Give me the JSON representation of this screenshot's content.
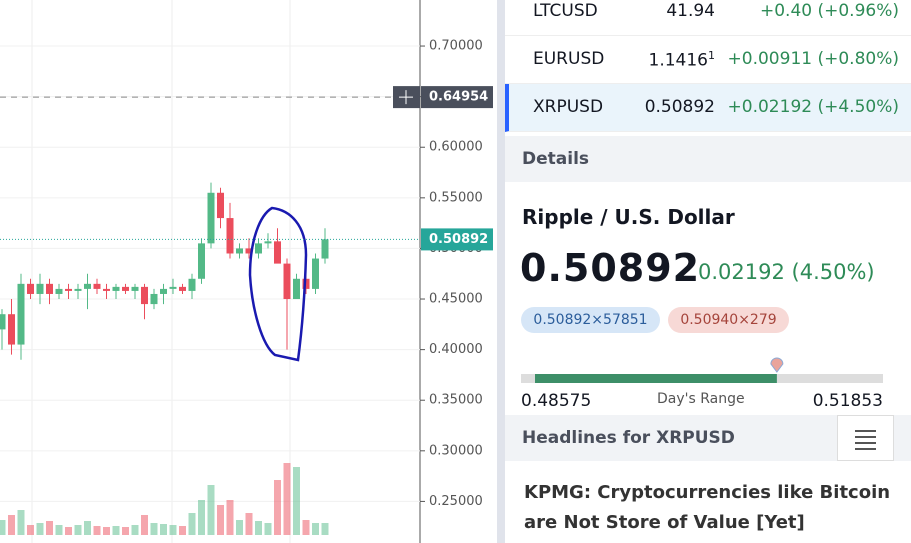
{
  "chart": {
    "ylim": [
      0.2089,
      0.7455
    ],
    "yticks": [
      {
        "value": 0.7,
        "label": "0.70000"
      },
      {
        "value": 0.65,
        "label": "0.65000"
      },
      {
        "value": 0.6,
        "label": "0.60000"
      },
      {
        "value": 0.55,
        "label": "0.55000"
      },
      {
        "value": 0.5,
        "label": "0.50000"
      },
      {
        "value": 0.45,
        "label": "0.45000"
      },
      {
        "value": 0.4,
        "label": "0.40000"
      },
      {
        "value": 0.35,
        "label": "0.35000"
      },
      {
        "value": 0.3,
        "label": "0.30000"
      },
      {
        "value": 0.25,
        "label": "0.25000"
      }
    ],
    "last_price": 0.50892,
    "crosshair": 0.64954,
    "up_color": "#53b987",
    "down_color": "#eb4d5c",
    "candles": [
      {
        "open": 0.42,
        "high": 0.44,
        "low": 0.4,
        "close": 0.435,
        "volume": 15
      },
      {
        "open": 0.435,
        "high": 0.45,
        "low": 0.395,
        "close": 0.405,
        "volume": 20
      },
      {
        "open": 0.405,
        "high": 0.475,
        "low": 0.39,
        "close": 0.465,
        "volume": 25
      },
      {
        "open": 0.465,
        "high": 0.47,
        "low": 0.45,
        "close": 0.455,
        "volume": 10
      },
      {
        "open": 0.455,
        "high": 0.475,
        "low": 0.445,
        "close": 0.465,
        "volume": 12
      },
      {
        "open": 0.465,
        "high": 0.47,
        "low": 0.445,
        "close": 0.455,
        "volume": 14
      },
      {
        "open": 0.455,
        "high": 0.465,
        "low": 0.45,
        "close": 0.46,
        "volume": 10
      },
      {
        "open": 0.46,
        "high": 0.465,
        "low": 0.45,
        "close": 0.458,
        "volume": 8
      },
      {
        "open": 0.458,
        "high": 0.465,
        "low": 0.45,
        "close": 0.46,
        "volume": 10
      },
      {
        "open": 0.46,
        "high": 0.475,
        "low": 0.44,
        "close": 0.465,
        "volume": 14
      },
      {
        "open": 0.465,
        "high": 0.47,
        "low": 0.455,
        "close": 0.46,
        "volume": 9
      },
      {
        "open": 0.46,
        "high": 0.465,
        "low": 0.45,
        "close": 0.458,
        "volume": 8
      },
      {
        "open": 0.458,
        "high": 0.465,
        "low": 0.45,
        "close": 0.462,
        "volume": 9
      },
      {
        "open": 0.462,
        "high": 0.465,
        "low": 0.455,
        "close": 0.458,
        "volume": 8
      },
      {
        "open": 0.458,
        "high": 0.465,
        "low": 0.45,
        "close": 0.462,
        "volume": 10
      },
      {
        "open": 0.462,
        "high": 0.465,
        "low": 0.43,
        "close": 0.445,
        "volume": 20
      },
      {
        "open": 0.445,
        "high": 0.46,
        "low": 0.44,
        "close": 0.455,
        "volume": 12
      },
      {
        "open": 0.455,
        "high": 0.465,
        "low": 0.445,
        "close": 0.46,
        "volume": 11
      },
      {
        "open": 0.46,
        "high": 0.47,
        "low": 0.455,
        "close": 0.462,
        "volume": 10
      },
      {
        "open": 0.462,
        "high": 0.465,
        "low": 0.455,
        "close": 0.458,
        "volume": 9
      },
      {
        "open": 0.458,
        "high": 0.475,
        "low": 0.45,
        "close": 0.47,
        "volume": 22
      },
      {
        "open": 0.47,
        "high": 0.51,
        "low": 0.465,
        "close": 0.505,
        "volume": 35
      },
      {
        "open": 0.505,
        "high": 0.565,
        "low": 0.5,
        "close": 0.555,
        "volume": 50
      },
      {
        "open": 0.555,
        "high": 0.56,
        "low": 0.52,
        "close": 0.53,
        "volume": 30
      },
      {
        "open": 0.53,
        "high": 0.545,
        "low": 0.49,
        "close": 0.495,
        "volume": 35
      },
      {
        "open": 0.495,
        "high": 0.505,
        "low": 0.49,
        "close": 0.5,
        "volume": 15
      },
      {
        "open": 0.5,
        "high": 0.51,
        "low": 0.49,
        "close": 0.495,
        "volume": 22
      },
      {
        "open": 0.495,
        "high": 0.51,
        "low": 0.49,
        "close": 0.505,
        "volume": 14
      },
      {
        "open": 0.505,
        "high": 0.515,
        "low": 0.5,
        "close": 0.507,
        "volume": 12
      },
      {
        "open": 0.507,
        "high": 0.52,
        "low": 0.49,
        "close": 0.485,
        "volume": 55
      },
      {
        "open": 0.485,
        "high": 0.49,
        "low": 0.4,
        "close": 0.45,
        "volume": 72
      },
      {
        "open": 0.45,
        "high": 0.475,
        "low": 0.45,
        "close": 0.47,
        "volume": 68
      },
      {
        "open": 0.47,
        "high": 0.48,
        "low": 0.455,
        "close": 0.46,
        "volume": 15
      },
      {
        "open": 0.46,
        "high": 0.495,
        "low": 0.455,
        "close": 0.49,
        "volume": 12
      },
      {
        "open": 0.49,
        "high": 0.52,
        "low": 0.485,
        "close": 0.509,
        "volume": 12
      }
    ]
  },
  "watchlist": [
    {
      "symbol": "LTCUSD",
      "price": "41.94",
      "change": "+0.40 (+0.96%)"
    },
    {
      "symbol": "EURUSD",
      "price": "1.1416",
      "price_sup": "1",
      "change": "+0.00911 (+0.80%)"
    },
    {
      "symbol": "XRPUSD",
      "price": "0.50892",
      "change": "+0.02192 (+4.50%)"
    }
  ],
  "details": {
    "header": "Details",
    "name": "Ripple / U.S. Dollar",
    "last": 0.50892,
    "change": "0.02192 (4.50%)",
    "bid": "0.50892×57851",
    "ask": "0.50940×279",
    "day_range": {
      "low": 0.48575,
      "high": 0.51853,
      "label": "Day's Range"
    }
  },
  "headlines": {
    "header": "Headlines for XRPUSD",
    "items": [
      "KPMG: Cryptocurrencies like Bitcoin are Not Store of Value [Yet]"
    ]
  }
}
